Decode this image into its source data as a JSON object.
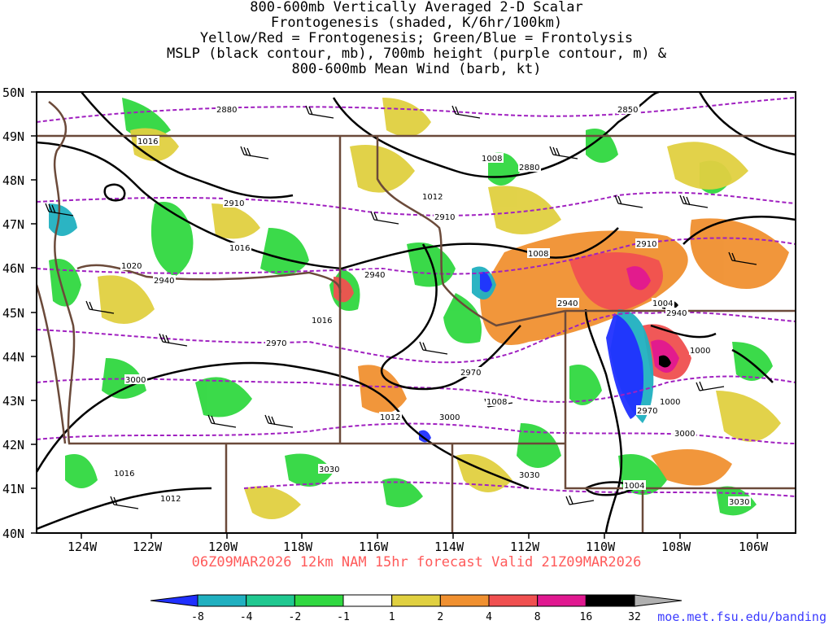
{
  "title": {
    "lines": [
      "800-600mb Vertically Averaged 2-D Scalar",
      "Frontogenesis (shaded, K/6hr/100km)",
      "Yellow/Red = Frontogenesis;  Green/Blue = Frontolysis",
      "MSLP (black contour, mb), 700mb height (purple contour, m) &",
      "800-600mb Mean Wind (barb, kt)"
    ]
  },
  "axes": {
    "lat_labels": [
      "50N",
      "49N",
      "48N",
      "47N",
      "46N",
      "45N",
      "44N",
      "43N",
      "42N",
      "41N",
      "40N"
    ],
    "lon_labels": [
      "124W",
      "122W",
      "120W",
      "118W",
      "116W",
      "114W",
      "112W",
      "110W",
      "108W",
      "106W"
    ]
  },
  "forecast_line": "06Z09MAR2026 12km NAM 15hr forecast Valid 21Z09MAR2026",
  "source_credit": "moe.met.fsu.edu/banding",
  "colorbar": {
    "labels": [
      "-8",
      "-4",
      "-2",
      "-1",
      "1",
      "2",
      "4",
      "8",
      "16",
      "32"
    ],
    "colors": [
      "#2030ff",
      "#20b0c0",
      "#20c890",
      "#30d840",
      "#ffffff",
      "#e0d040",
      "#f09030",
      "#f05050",
      "#e01890",
      "#000000",
      "#b0b0b0"
    ]
  },
  "contour_labels": {
    "height": [
      "2880",
      "2850",
      "2880",
      "2910",
      "2910",
      "2910",
      "2940",
      "2940",
      "2940",
      "2940",
      "2970",
      "2970",
      "2970",
      "3000",
      "3000",
      "3000",
      "3030",
      "3030",
      "3030"
    ],
    "pressure": [
      "1016",
      "1008",
      "1012",
      "1016",
      "1020",
      "1016",
      "1008",
      "1004",
      "1000",
      "1012",
      "1008",
      "1000",
      "1016",
      "1012",
      "1004"
    ]
  },
  "colors": {
    "mslp_contour": "#000000",
    "height_contour": "#a020c0",
    "borders": "#6b4a3a",
    "frontogenesis_weak": "#e0d040",
    "frontogenesis_moderate": "#f09030",
    "frontogenesis_strong": "#f05050",
    "frontogenesis_very_strong": "#e01890",
    "frontolysis_weak": "#30d840",
    "frontolysis_moderate": "#20b0c0",
    "frontolysis_strong": "#2030ff"
  }
}
